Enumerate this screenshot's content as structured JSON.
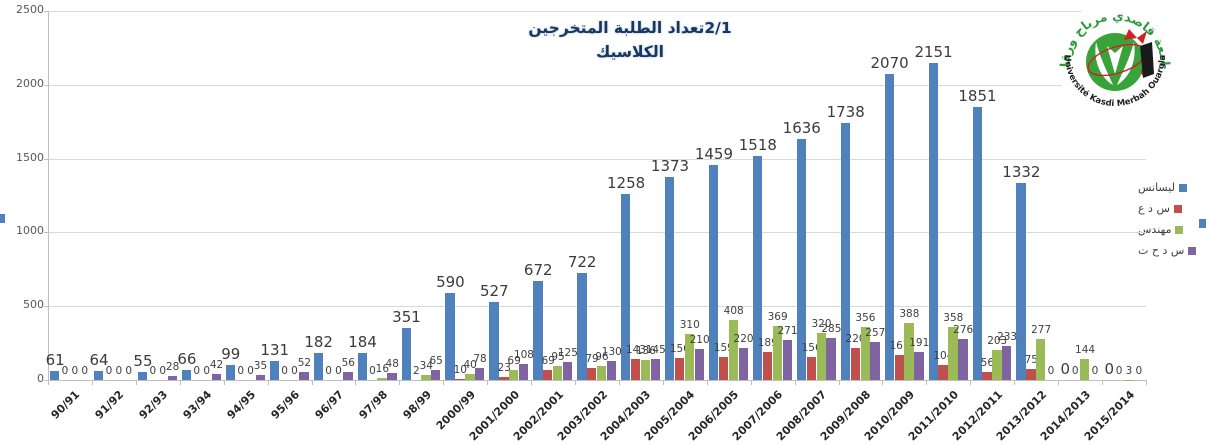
{
  "chart_data": {
    "type": "bar",
    "title": {
      "line1": "2/1تعداد الطلبة المتخرجين",
      "line2": "الكلاسيك"
    },
    "title_color": "#17375E",
    "axis": {
      "y_ticks": [
        0,
        500,
        1000,
        1500,
        2000,
        2500
      ],
      "y_max": 2500,
      "grid": true
    },
    "legend_position": "right",
    "categories": [
      "90/91",
      "91/92",
      "92/93",
      "93/94",
      "94/95",
      "95/96",
      "96/97",
      "97/98",
      "98/99",
      "2000/99",
      "2001/2000",
      "2002/2001",
      "2003/2002",
      "2004/2003",
      "2005/2004",
      "2006/2005",
      "2007/2006",
      "2008/2007",
      "2009/2008",
      "2010/2009",
      "2011/2010",
      "2012/2011",
      "2013/2012",
      "2014/2013",
      "2015/2014"
    ],
    "series": [
      {
        "name": "ليسانس",
        "color": "#4F81BD",
        "values": [
          61,
          64,
          55,
          66,
          99,
          131,
          182,
          184,
          351,
          590,
          527,
          672,
          722,
          1258,
          1373,
          1459,
          1518,
          1636,
          1738,
          2070,
          2151,
          1851,
          1332,
          0,
          0
        ]
      },
      {
        "name": "س د ع",
        "color": "#C0504D",
        "values": [
          0,
          0,
          0,
          0,
          0,
          0,
          0,
          0,
          2,
          10,
          23,
          69,
          79,
          143,
          150,
          159,
          189,
          156,
          220,
          167,
          104,
          56,
          75,
          0,
          0
        ]
      },
      {
        "name": "مهندس",
        "color": "#9BBB59",
        "values": [
          0,
          0,
          0,
          0,
          0,
          0,
          0,
          16,
          34,
          40,
          69,
          95,
          96,
          136,
          310,
          408,
          369,
          320,
          356,
          388,
          358,
          203,
          277,
          144,
          3
        ]
      },
      {
        "name": "س د ح ت",
        "color": "#8064A2",
        "values": [
          0,
          0,
          28,
          42,
          35,
          52,
          56,
          48,
          65,
          78,
          108,
          125,
          130,
          145,
          210,
          220,
          271,
          285,
          257,
          191,
          276,
          233,
          0,
          0,
          0
        ]
      }
    ]
  },
  "logo": {
    "arc_top": "جامعة قاصدي مرباح ورقلة",
    "arc_bottom": "Université Kasdi Merbah Ouargla",
    "disc_color": "#37A339",
    "arc_top_color": "#2E9B3E",
    "accent_red": "#D21F26",
    "book_color": "#1A1A1A"
  }
}
